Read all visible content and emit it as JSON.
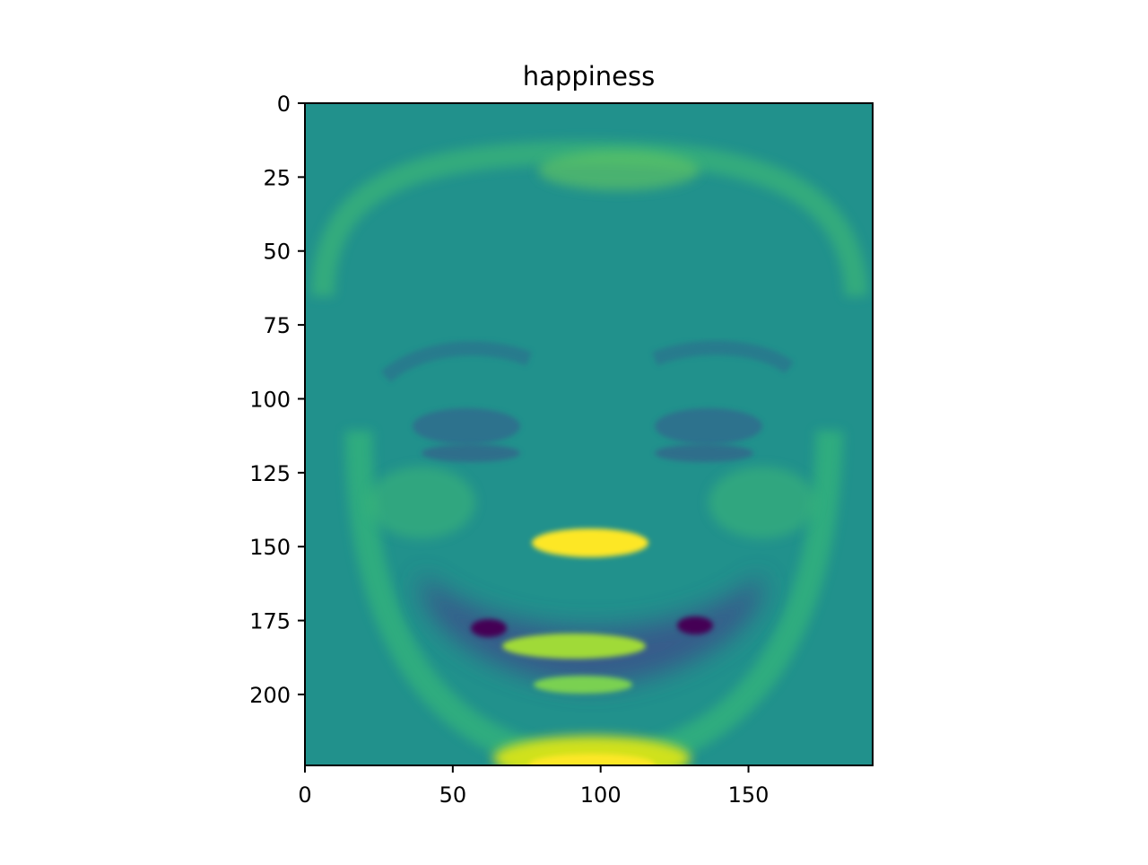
{
  "chart_data": {
    "type": "heatmap",
    "title": "happiness",
    "xlabel": "",
    "ylabel": "",
    "xlim": [
      0,
      192
    ],
    "ylim": [
      224,
      0
    ],
    "x_ticks": [
      0,
      50,
      100,
      150
    ],
    "y_ticks": [
      0,
      25,
      50,
      75,
      100,
      125,
      150,
      175,
      200
    ],
    "x_tick_labels": [
      "0",
      "50",
      "100",
      "150"
    ],
    "y_tick_labels": [
      "0",
      "25",
      "50",
      "75",
      "100",
      "125",
      "150",
      "175",
      "200"
    ],
    "image_width": 192,
    "image_height": 224,
    "colormap": "viridis",
    "grid": false,
    "colors": {
      "background": "#21918c",
      "light": "#5ec962",
      "bright": "#fde725",
      "dark": "#3b528b",
      "darkest": "#440154"
    }
  }
}
